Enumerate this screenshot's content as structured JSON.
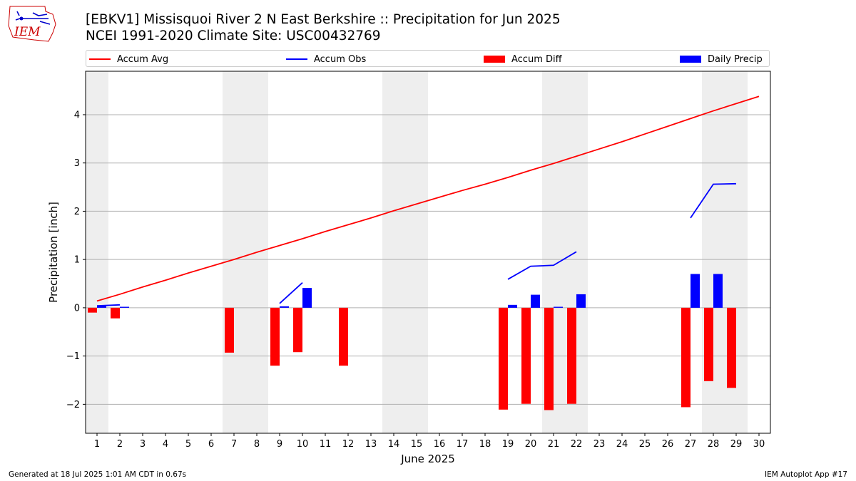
{
  "header": {
    "title_line1": "[EBKV1] Missisquoi River 2 N East Berkshire :: Precipitation for Jun 2025",
    "title_line2": "NCEI 1991-2020 Climate Site: USC00432769",
    "logo_text": "IEM"
  },
  "footer": {
    "generated": "Generated at 18 Jul 2025 1:01 AM CDT in 0.67s",
    "app": "IEM Autoplot App #17"
  },
  "legend": {
    "placement": "top, above plot",
    "items": [
      {
        "label": "Accum Avg",
        "kind": "line",
        "color": "#ff0000"
      },
      {
        "label": "Accum Obs",
        "kind": "line",
        "color": "#0000ff"
      },
      {
        "label": "Accum Diff",
        "kind": "bar",
        "color": "#ff0000"
      },
      {
        "label": "Daily Precip",
        "kind": "bar",
        "color": "#0000ff"
      }
    ]
  },
  "chart_data": {
    "type": "bar",
    "xlabel": "June 2025",
    "ylabel": "Precipitation [inch]",
    "xlim": [
      0.5,
      30.5
    ],
    "ylim": [
      -2.6,
      4.9
    ],
    "yticks": [
      -2,
      -1,
      0,
      1,
      2,
      3,
      4
    ],
    "ytick_labels": [
      "−2",
      "−1",
      "0",
      "1",
      "2",
      "3",
      "4"
    ],
    "xticks": [
      1,
      2,
      3,
      4,
      5,
      6,
      7,
      8,
      9,
      10,
      11,
      12,
      13,
      14,
      15,
      16,
      17,
      18,
      19,
      20,
      21,
      22,
      23,
      24,
      25,
      26,
      27,
      28,
      29,
      30
    ],
    "grid": "horizontal",
    "weekend_shading": [
      [
        0.5,
        1.5
      ],
      [
        6.5,
        8.5
      ],
      [
        13.5,
        15.5
      ],
      [
        20.5,
        22.5
      ],
      [
        27.5,
        29.5
      ]
    ],
    "colors": {
      "accum_avg": "#ff0000",
      "accum_obs": "#0000ff",
      "accum_diff": "#ff0000",
      "daily_precip": "#0000ff",
      "shade": "#eeeeee",
      "grid": "#b0b0b0"
    },
    "accum_avg": {
      "name": "Accum Avg",
      "x": [
        1,
        2,
        3,
        4,
        5,
        6,
        7,
        8,
        9,
        10,
        11,
        12,
        13,
        14,
        15,
        16,
        17,
        18,
        19,
        20,
        21,
        22,
        23,
        24,
        25,
        26,
        27,
        28,
        29,
        30
      ],
      "values": [
        0.14,
        0.28,
        0.43,
        0.57,
        0.72,
        0.86,
        1.0,
        1.15,
        1.29,
        1.43,
        1.58,
        1.72,
        1.86,
        2.01,
        2.15,
        2.29,
        2.43,
        2.56,
        2.7,
        2.85,
        2.99,
        3.14,
        3.29,
        3.44,
        3.6,
        3.76,
        3.92,
        4.08,
        4.23,
        4.38
      ]
    },
    "accum_obs_segments": [
      {
        "x": [
          1,
          2
        ],
        "values": [
          0.04,
          0.06
        ]
      },
      {
        "x": [
          9,
          10
        ],
        "values": [
          0.09,
          0.52
        ]
      },
      {
        "x": [
          19,
          20,
          21,
          22
        ],
        "values": [
          0.59,
          0.86,
          0.88,
          1.16
        ]
      },
      {
        "x": [
          27,
          28,
          29
        ],
        "values": [
          1.86,
          2.56,
          2.57
        ]
      }
    ],
    "accum_diff": {
      "name": "Accum Diff",
      "x": [
        1,
        2,
        7,
        9,
        10,
        12,
        19,
        20,
        21,
        22,
        27,
        28,
        29
      ],
      "values": [
        -0.1,
        -0.22,
        -0.93,
        -1.2,
        -0.92,
        -1.2,
        -2.11,
        -1.99,
        -2.12,
        -1.99,
        -2.06,
        -1.52,
        -1.66
      ]
    },
    "daily_precip": {
      "name": "Daily Precip",
      "x": [
        1,
        2,
        9,
        10,
        19,
        20,
        21,
        22,
        27,
        28
      ],
      "values": [
        0.04,
        0.02,
        0.03,
        0.41,
        0.06,
        0.27,
        0.02,
        0.28,
        0.7,
        0.7
      ]
    }
  }
}
